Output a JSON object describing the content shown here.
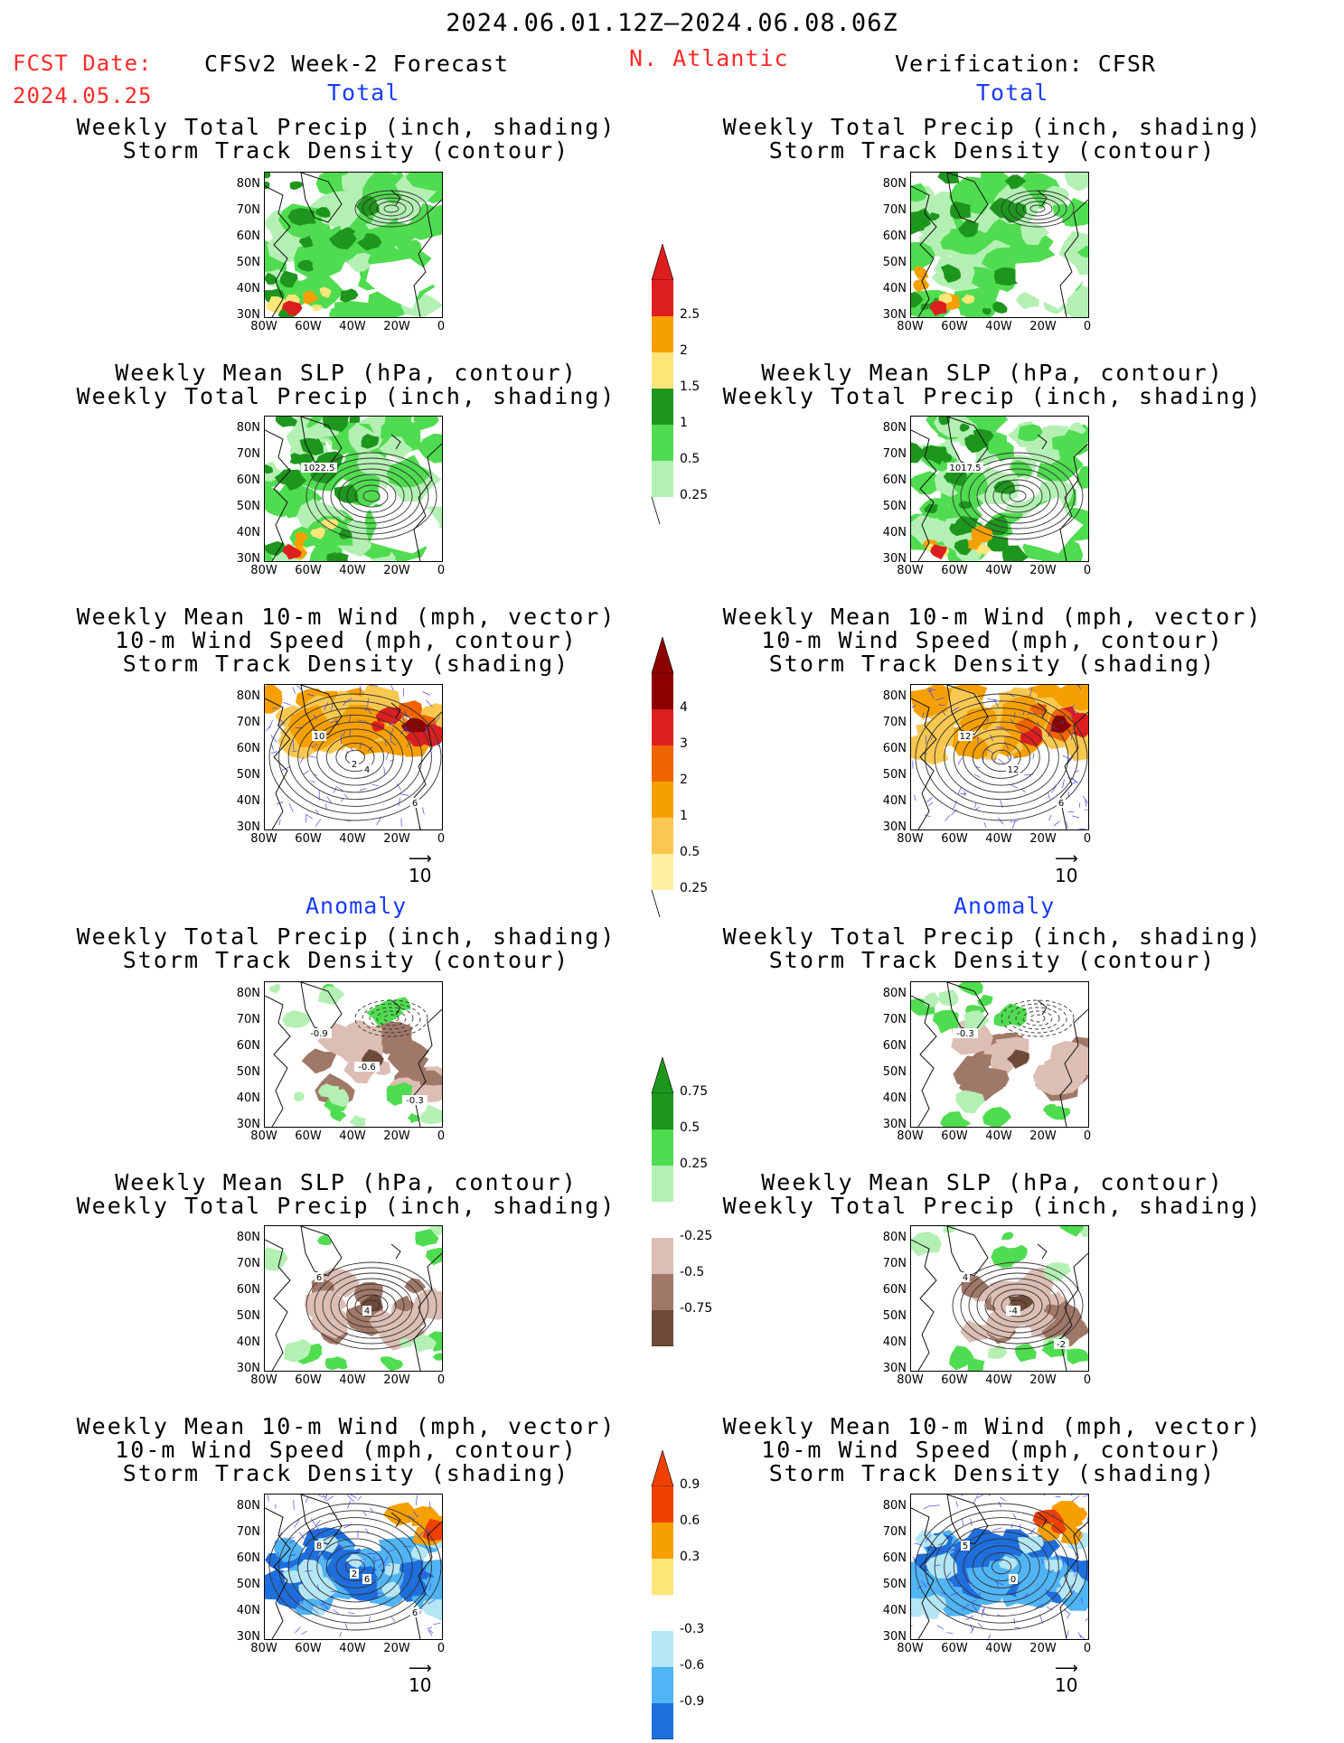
{
  "header": {
    "period": "2024.06.01.12Z–2024.06.08.06Z",
    "fcst_label": "FCST Date:",
    "fcst_date": "2024.05.25",
    "left_title": "CFSv2 Week-2 Forecast",
    "region": "N. Atlantic",
    "right_title": "Verification: CFSR"
  },
  "sections": {
    "total": "Total",
    "anomaly": "Anomaly"
  },
  "panel_titles": {
    "precip_storm": [
      "Weekly Total Precip (inch, shading)",
      "Storm Track Density (contour)"
    ],
    "slp_precip": [
      "Weekly Mean SLP (hPa, contour)",
      "Weekly Total Precip (inch, shading)"
    ],
    "wind_storm": [
      "Weekly Mean 10-m Wind (mph, vector)",
      "10-m Wind Speed (mph, contour)",
      "Storm Track Density (shading)"
    ]
  },
  "axes": {
    "lat": [
      "80N",
      "70N",
      "60N",
      "50N",
      "40N",
      "30N"
    ],
    "lon": [
      "80W",
      "60W",
      "40W",
      "20W",
      "0"
    ]
  },
  "contour_labels": {
    "fcst_slp_total": "1022.5",
    "verif_slp_total": "1017.5",
    "fcst_wind_total": [
      "10",
      "4",
      "6",
      "2"
    ],
    "verif_wind_total": [
      "12",
      "12",
      "6"
    ],
    "fcst_precip_anom": [
      "-0.9",
      "-0.6",
      "-0.3"
    ],
    "verif_precip_anom": [
      "-0.3"
    ],
    "fcst_slp_anom": [
      "6",
      "4"
    ],
    "verif_slp_anom": [
      "4",
      "-4",
      "-2"
    ],
    "fcst_wind_anom": [
      "8",
      "6",
      "6",
      "2"
    ],
    "verif_wind_anom": [
      "5",
      "0"
    ]
  },
  "vector_ref": "10",
  "colorbars": {
    "precip_total": [
      "2.5",
      "2",
      "1.5",
      "1",
      "0.5",
      "0.25"
    ],
    "density_total": [
      "4",
      "3",
      "2",
      "1",
      "0.5",
      "0.25"
    ],
    "precip_anom": [
      "0.75",
      "0.5",
      "0.25",
      "-0.25",
      "-0.5",
      "-0.75"
    ],
    "density_anom": [
      "0.9",
      "0.6",
      "0.3",
      "-0.3",
      "-0.6",
      "-0.9"
    ]
  },
  "colors": {
    "precip_total": [
      "#dc1e1e",
      "#f5a000",
      "#ffe678",
      "#1e961e",
      "#50dc50",
      "#b4f0b4"
    ],
    "density_total": [
      "#8c0000",
      "#dc1e1e",
      "#f06400",
      "#f5a000",
      "#fac850",
      "#fff0a0"
    ],
    "precip_anom": [
      "#1e961e",
      "#50dc50",
      "#b4f0b4",
      "#dcbeb4",
      "#a07868",
      "#6e4a3a"
    ],
    "density_anom": [
      "#f04000",
      "#f5a000",
      "#ffe678",
      "#b4e6f5",
      "#50b4f5",
      "#1e6edc"
    ]
  },
  "chart_data": {
    "type": "heatmap",
    "title": "2024.06.01.12Z–2024.06.08.06Z",
    "region": "N. Atlantic",
    "columns": [
      "CFSv2 Week-2 Forecast",
      "Verification: CFSR"
    ],
    "x_ticks": [
      "80W",
      "60W",
      "40W",
      "20W",
      "0"
    ],
    "y_ticks": [
      "80N",
      "70N",
      "60N",
      "50N",
      "40N",
      "30N"
    ],
    "legend_levels": {
      "precip_total": [
        0.25,
        0.5,
        1,
        1.5,
        2,
        2.5
      ],
      "storm_density_total": [
        0.25,
        0.5,
        1,
        2,
        3,
        4
      ],
      "precip_anomaly": [
        -0.75,
        -0.5,
        -0.25,
        0.25,
        0.5,
        0.75
      ],
      "storm_density_anomaly": [
        -0.9,
        -0.6,
        -0.3,
        0.3,
        0.6,
        0.9
      ]
    }
  }
}
